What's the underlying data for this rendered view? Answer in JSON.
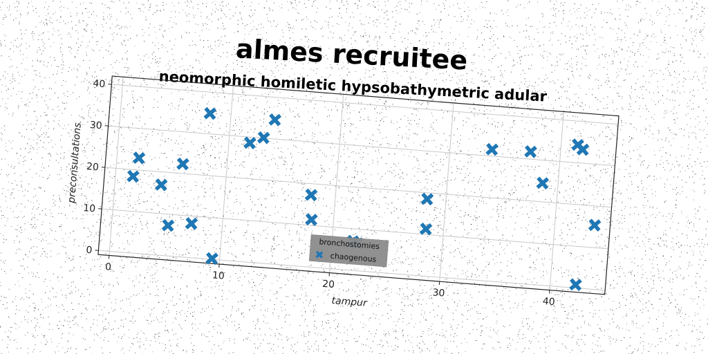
{
  "chart_data": {
    "type": "scatter",
    "title": "almes recruitee",
    "subtitle": "neomorphic homiletic hypsobathymetric adular",
    "xlabel": "tampur",
    "ylabel": "preconsultations",
    "xlim": [
      -1,
      45
    ],
    "ylim": [
      -1,
      42
    ],
    "xticks": [
      0,
      10,
      20,
      30,
      40
    ],
    "yticks": [
      0,
      10,
      20,
      30,
      40
    ],
    "grid": true,
    "legend": {
      "title": "bronchostomies",
      "position": "bottom-center"
    },
    "colors": {
      "marker": "#1f77b4",
      "legend_bg": "#8c8c8c"
    },
    "series": [
      {
        "name": "chaogenous",
        "marker": "x",
        "points": [
          [
            1.6,
            18.4
          ],
          [
            2.0,
            22.9
          ],
          [
            4.2,
            16.9
          ],
          [
            5.1,
            7.3
          ],
          [
            6.0,
            22.3
          ],
          [
            7.2,
            8.2
          ],
          [
            8.1,
            34.9
          ],
          [
            9.3,
            0.2
          ],
          [
            11.9,
            28.6
          ],
          [
            13.1,
            30.1
          ],
          [
            14.0,
            34.6
          ],
          [
            17.8,
            17.3
          ],
          [
            18.0,
            11.4
          ],
          [
            21.9,
            7.0
          ],
          [
            22.3,
            6.6
          ],
          [
            28.3,
            18.5
          ],
          [
            28.4,
            11.3
          ],
          [
            33.8,
            31.6
          ],
          [
            37.3,
            31.8
          ],
          [
            38.6,
            24.5
          ],
          [
            41.5,
            34.3
          ],
          [
            42.0,
            33.3
          ],
          [
            42.3,
            0.8
          ],
          [
            43.6,
            15.4
          ]
        ]
      }
    ]
  }
}
